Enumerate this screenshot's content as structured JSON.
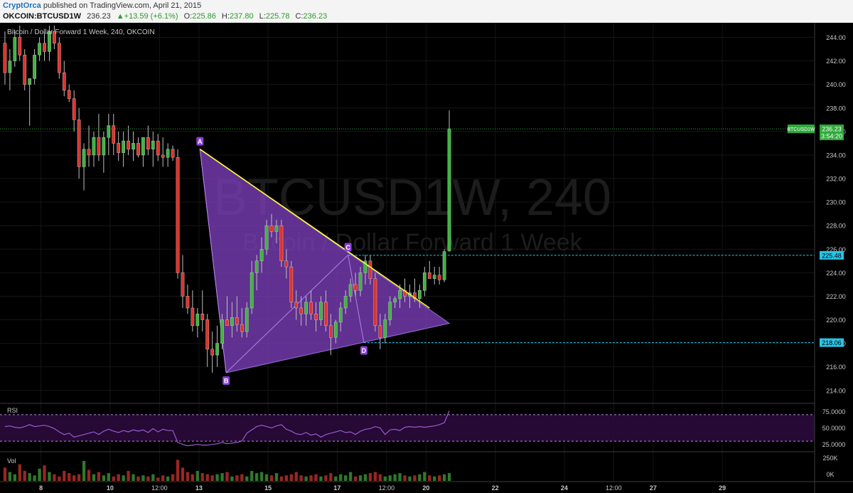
{
  "header": {
    "author": "CryptOrca",
    "published_text": "published on TradingView.com, April 21, 2015",
    "symbol": "OKCOIN:BTCUSD1W",
    "last": "236.23",
    "change": "+13.59 (+6.1%)",
    "open_label": "O:",
    "open": "225.86",
    "high_label": "H:",
    "high": "237.80",
    "low_label": "L:",
    "low": "225.78",
    "close_label": "C:",
    "close": "236.23"
  },
  "colors": {
    "background": "#000000",
    "up": "#3fb53f",
    "down": "#e0322b",
    "triangle_fill": "#7b3fb8",
    "trendline": "#ffff33",
    "hline": "#29c5e6",
    "price_badge": "#2eaa3a"
  },
  "chart_data": {
    "type": "candlestick",
    "title": "Bitcoin / Dollar Forward 1 Week, 240, OKCOIN",
    "watermark_line1": "BTCUSD1W, 240",
    "watermark_line2": "Bitcoin / Dollar Forward 1 Week",
    "y_ticks": [
      "244.00",
      "242.00",
      "240.00",
      "238.00",
      "236.00",
      "234.00",
      "232.00",
      "230.00",
      "228.00",
      "226.00",
      "224.00",
      "222.00",
      "220.00",
      "218.00",
      "216.00",
      "214.00"
    ],
    "ylim": [
      213.2,
      245.0
    ],
    "x_ticks": [
      "8",
      "10",
      "12:00",
      "13",
      "15",
      "17",
      "12:00",
      "20",
      "22",
      "24",
      "12:00",
      "27",
      "29"
    ],
    "x_tick_bars": [
      8.3,
      22.3,
      32.3,
      40.3,
      54.3,
      68.3,
      78.3,
      86.3,
      100.3,
      114.3,
      124.3,
      132.3,
      146.3
    ],
    "bars_total": 165,
    "candles": [
      [
        243.5,
        244.5,
        240.0,
        241.0
      ],
      [
        241.0,
        243.0,
        239.5,
        242.0
      ],
      [
        242.0,
        244.5,
        241.5,
        244.0
      ],
      [
        244.0,
        245.0,
        242.0,
        242.5
      ],
      [
        242.5,
        243.0,
        239.5,
        240.0
      ],
      [
        240.0,
        240.5,
        236.5,
        240.5
      ],
      [
        240.5,
        243.0,
        240.0,
        242.5
      ],
      [
        242.5,
        244.0,
        242.0,
        243.5
      ],
      [
        243.5,
        244.5,
        242.0,
        242.8
      ],
      [
        242.8,
        245.0,
        242.0,
        244.5
      ],
      [
        244.5,
        245.0,
        243.0,
        243.5
      ],
      [
        243.5,
        244.0,
        240.5,
        241.0
      ],
      [
        241.0,
        242.0,
        239.0,
        239.5
      ],
      [
        239.5,
        240.0,
        238.5,
        238.8
      ],
      [
        238.8,
        239.5,
        236.0,
        237.0
      ],
      [
        237.0,
        238.0,
        232.0,
        233.0
      ],
      [
        233.0,
        235.0,
        231.0,
        234.5
      ],
      [
        234.5,
        236.5,
        233.0,
        234.0
      ],
      [
        234.0,
        236.0,
        233.0,
        235.5
      ],
      [
        235.5,
        237.5,
        233.5,
        234.0
      ],
      [
        234.0,
        236.0,
        232.5,
        235.5
      ],
      [
        235.5,
        237.5,
        234.0,
        236.5
      ],
      [
        236.5,
        237.5,
        234.0,
        235.0
      ],
      [
        235.0,
        236.0,
        233.5,
        234.2
      ],
      [
        234.2,
        236.0,
        233.0,
        235.2
      ],
      [
        235.2,
        236.5,
        234.0,
        234.5
      ],
      [
        234.5,
        236.0,
        233.5,
        235.0
      ],
      [
        235.0,
        235.5,
        233.8,
        234.0
      ],
      [
        234.0,
        235.5,
        233.0,
        235.5
      ],
      [
        235.5,
        236.5,
        234.0,
        234.5
      ],
      [
        234.5,
        236.0,
        233.0,
        235.2
      ],
      [
        235.2,
        235.8,
        233.5,
        234.0
      ],
      [
        234.0,
        235.5,
        233.0,
        233.8
      ],
      [
        233.8,
        235.0,
        233.0,
        234.5
      ],
      [
        234.5,
        234.8,
        233.5,
        233.8
      ],
      [
        233.8,
        234.5,
        223.5,
        224.0
      ],
      [
        224.0,
        225.5,
        221.0,
        222.0
      ],
      [
        222.0,
        223.0,
        220.5,
        221.0
      ],
      [
        221.0,
        222.5,
        219.0,
        219.5
      ],
      [
        219.5,
        221.0,
        218.5,
        220.5
      ],
      [
        220.5,
        222.5,
        219.0,
        220.0
      ],
      [
        220.0,
        220.5,
        216.0,
        217.5
      ],
      [
        217.5,
        219.0,
        215.5,
        217.0
      ],
      [
        217.0,
        219.5,
        216.0,
        218.0
      ],
      [
        218.0,
        220.5,
        217.5,
        220.0
      ],
      [
        220.0,
        222.0,
        219.5,
        219.5
      ],
      [
        219.5,
        221.5,
        218.5,
        220.2
      ],
      [
        220.2,
        222.0,
        219.0,
        219.6
      ],
      [
        219.6,
        221.0,
        218.5,
        219.0
      ],
      [
        219.0,
        221.5,
        218.5,
        221.0
      ],
      [
        221.0,
        225.0,
        220.5,
        224.0
      ],
      [
        224.0,
        225.5,
        222.5,
        225.0
      ],
      [
        225.0,
        227.0,
        224.0,
        226.0
      ],
      [
        226.0,
        228.5,
        225.5,
        228.0
      ],
      [
        228.0,
        229.0,
        227.0,
        227.5
      ],
      [
        227.5,
        228.5,
        226.5,
        228.0
      ],
      [
        228.0,
        228.5,
        224.5,
        225.0
      ],
      [
        225.0,
        226.0,
        223.5,
        224.5
      ],
      [
        224.5,
        225.0,
        221.0,
        221.5
      ],
      [
        221.5,
        222.5,
        220.0,
        221.0
      ],
      [
        221.0,
        222.0,
        219.5,
        220.5
      ],
      [
        220.5,
        222.0,
        219.5,
        221.5
      ],
      [
        221.5,
        222.5,
        220.0,
        220.5
      ],
      [
        220.5,
        221.5,
        219.0,
        220.0
      ],
      [
        220.0,
        222.0,
        219.5,
        221.5
      ],
      [
        221.5,
        222.5,
        219.0,
        219.5
      ],
      [
        219.5,
        220.5,
        217.0,
        218.5
      ],
      [
        218.5,
        220.0,
        218.0,
        219.8
      ],
      [
        219.8,
        221.5,
        219.0,
        221.0
      ],
      [
        221.0,
        222.5,
        220.5,
        222.0
      ],
      [
        222.0,
        223.5,
        221.5,
        223.0
      ],
      [
        223.0,
        224.0,
        222.0,
        222.5
      ],
      [
        222.5,
        224.5,
        222.0,
        224.0
      ],
      [
        224.0,
        225.5,
        223.0,
        225.0
      ],
      [
        225.0,
        225.5,
        223.0,
        223.5
      ],
      [
        223.5,
        224.0,
        219.0,
        219.5
      ],
      [
        219.5,
        220.5,
        217.5,
        218.5
      ],
      [
        218.5,
        220.5,
        218.0,
        220.0
      ],
      [
        220.0,
        222.0,
        219.5,
        221.5
      ],
      [
        221.5,
        222.0,
        221.0,
        221.8
      ],
      [
        221.8,
        223.0,
        221.0,
        222.5
      ],
      [
        222.5,
        223.5,
        221.5,
        222.0
      ],
      [
        222.0,
        223.0,
        221.0,
        222.3
      ],
      [
        222.3,
        223.5,
        221.5,
        221.8
      ],
      [
        221.8,
        223.0,
        221.0,
        222.5
      ],
      [
        222.5,
        224.5,
        222.0,
        224.0
      ],
      [
        224.0,
        225.0,
        223.5,
        223.5
      ],
      [
        223.5,
        224.5,
        223.0,
        223.8
      ],
      [
        223.8,
        224.5,
        223.0,
        223.4
      ],
      [
        223.4,
        226.0,
        223.2,
        225.8
      ],
      [
        225.86,
        237.8,
        225.78,
        236.23
      ]
    ],
    "hlines": [
      236.23,
      225.48,
      218.06
    ],
    "price_labels": [
      "236.23",
      "225.48",
      "218.06"
    ],
    "last_price_label": "BTCUSD1W",
    "countdown": "3:54:20",
    "pattern": {
      "type": "triangle",
      "points": [
        {
          "label": "A",
          "bar": 40.5,
          "price": 234.5
        },
        {
          "label": "B",
          "bar": 45.8,
          "price": 215.5
        },
        {
          "label": "C",
          "bar": 70.5,
          "price": 225.5
        },
        {
          "label": "D",
          "bar": 73.7,
          "price": 218.06
        }
      ],
      "apex": {
        "bar": 91.0,
        "price": 219.7
      }
    },
    "trendline": {
      "start": {
        "bar": 40.5,
        "price": 234.5
      },
      "end": {
        "bar": 87.0,
        "price": 221.0
      }
    },
    "rsi": {
      "label": "RSI",
      "ticks": [
        "75.0000",
        "50.0000",
        "25.0000"
      ],
      "levels": [
        70,
        30
      ],
      "ylim": [
        15,
        85
      ],
      "values": [
        52,
        53,
        51,
        50,
        52,
        55,
        52,
        53,
        54,
        52,
        49,
        44,
        40,
        42,
        36,
        38,
        40,
        42,
        44,
        40,
        45,
        48,
        45,
        43,
        46,
        44,
        47,
        45,
        47,
        43,
        49,
        44,
        48,
        46,
        46,
        28,
        25,
        23,
        24,
        25,
        24,
        24,
        25,
        26,
        28,
        26,
        27,
        28,
        30,
        42,
        47,
        52,
        54,
        52,
        50,
        53,
        55,
        48,
        45,
        41,
        40,
        43,
        39,
        41,
        36,
        40,
        42,
        44,
        46,
        43,
        44,
        40,
        45,
        48,
        49,
        52,
        50,
        40,
        47,
        48,
        46,
        51,
        52,
        51,
        52,
        51,
        52,
        53,
        55,
        58,
        76
      ],
      "start_bar": 1
    },
    "volume": {
      "label": "Vol",
      "ticks": [
        "250K",
        "0K"
      ],
      "values": [
        120,
        80,
        60,
        150,
        90,
        70,
        50,
        110,
        140,
        80,
        60,
        40,
        90,
        70,
        50,
        60,
        180,
        100,
        60,
        80,
        50,
        70,
        40,
        60,
        50,
        90,
        60,
        40,
        50,
        40,
        60,
        30,
        50,
        40,
        60,
        190,
        120,
        80,
        60,
        90,
        70,
        60,
        50,
        60,
        70,
        80,
        40,
        50,
        60,
        40,
        90,
        70,
        80,
        60,
        50,
        70,
        40,
        50,
        60,
        80,
        50,
        40,
        50,
        60,
        40,
        50,
        70,
        40,
        60,
        50,
        80,
        40,
        50,
        60,
        70,
        80,
        60,
        40,
        50,
        60,
        70,
        50,
        40,
        50,
        60,
        80,
        50,
        40,
        50,
        60,
        70
      ],
      "max": 250
    }
  }
}
